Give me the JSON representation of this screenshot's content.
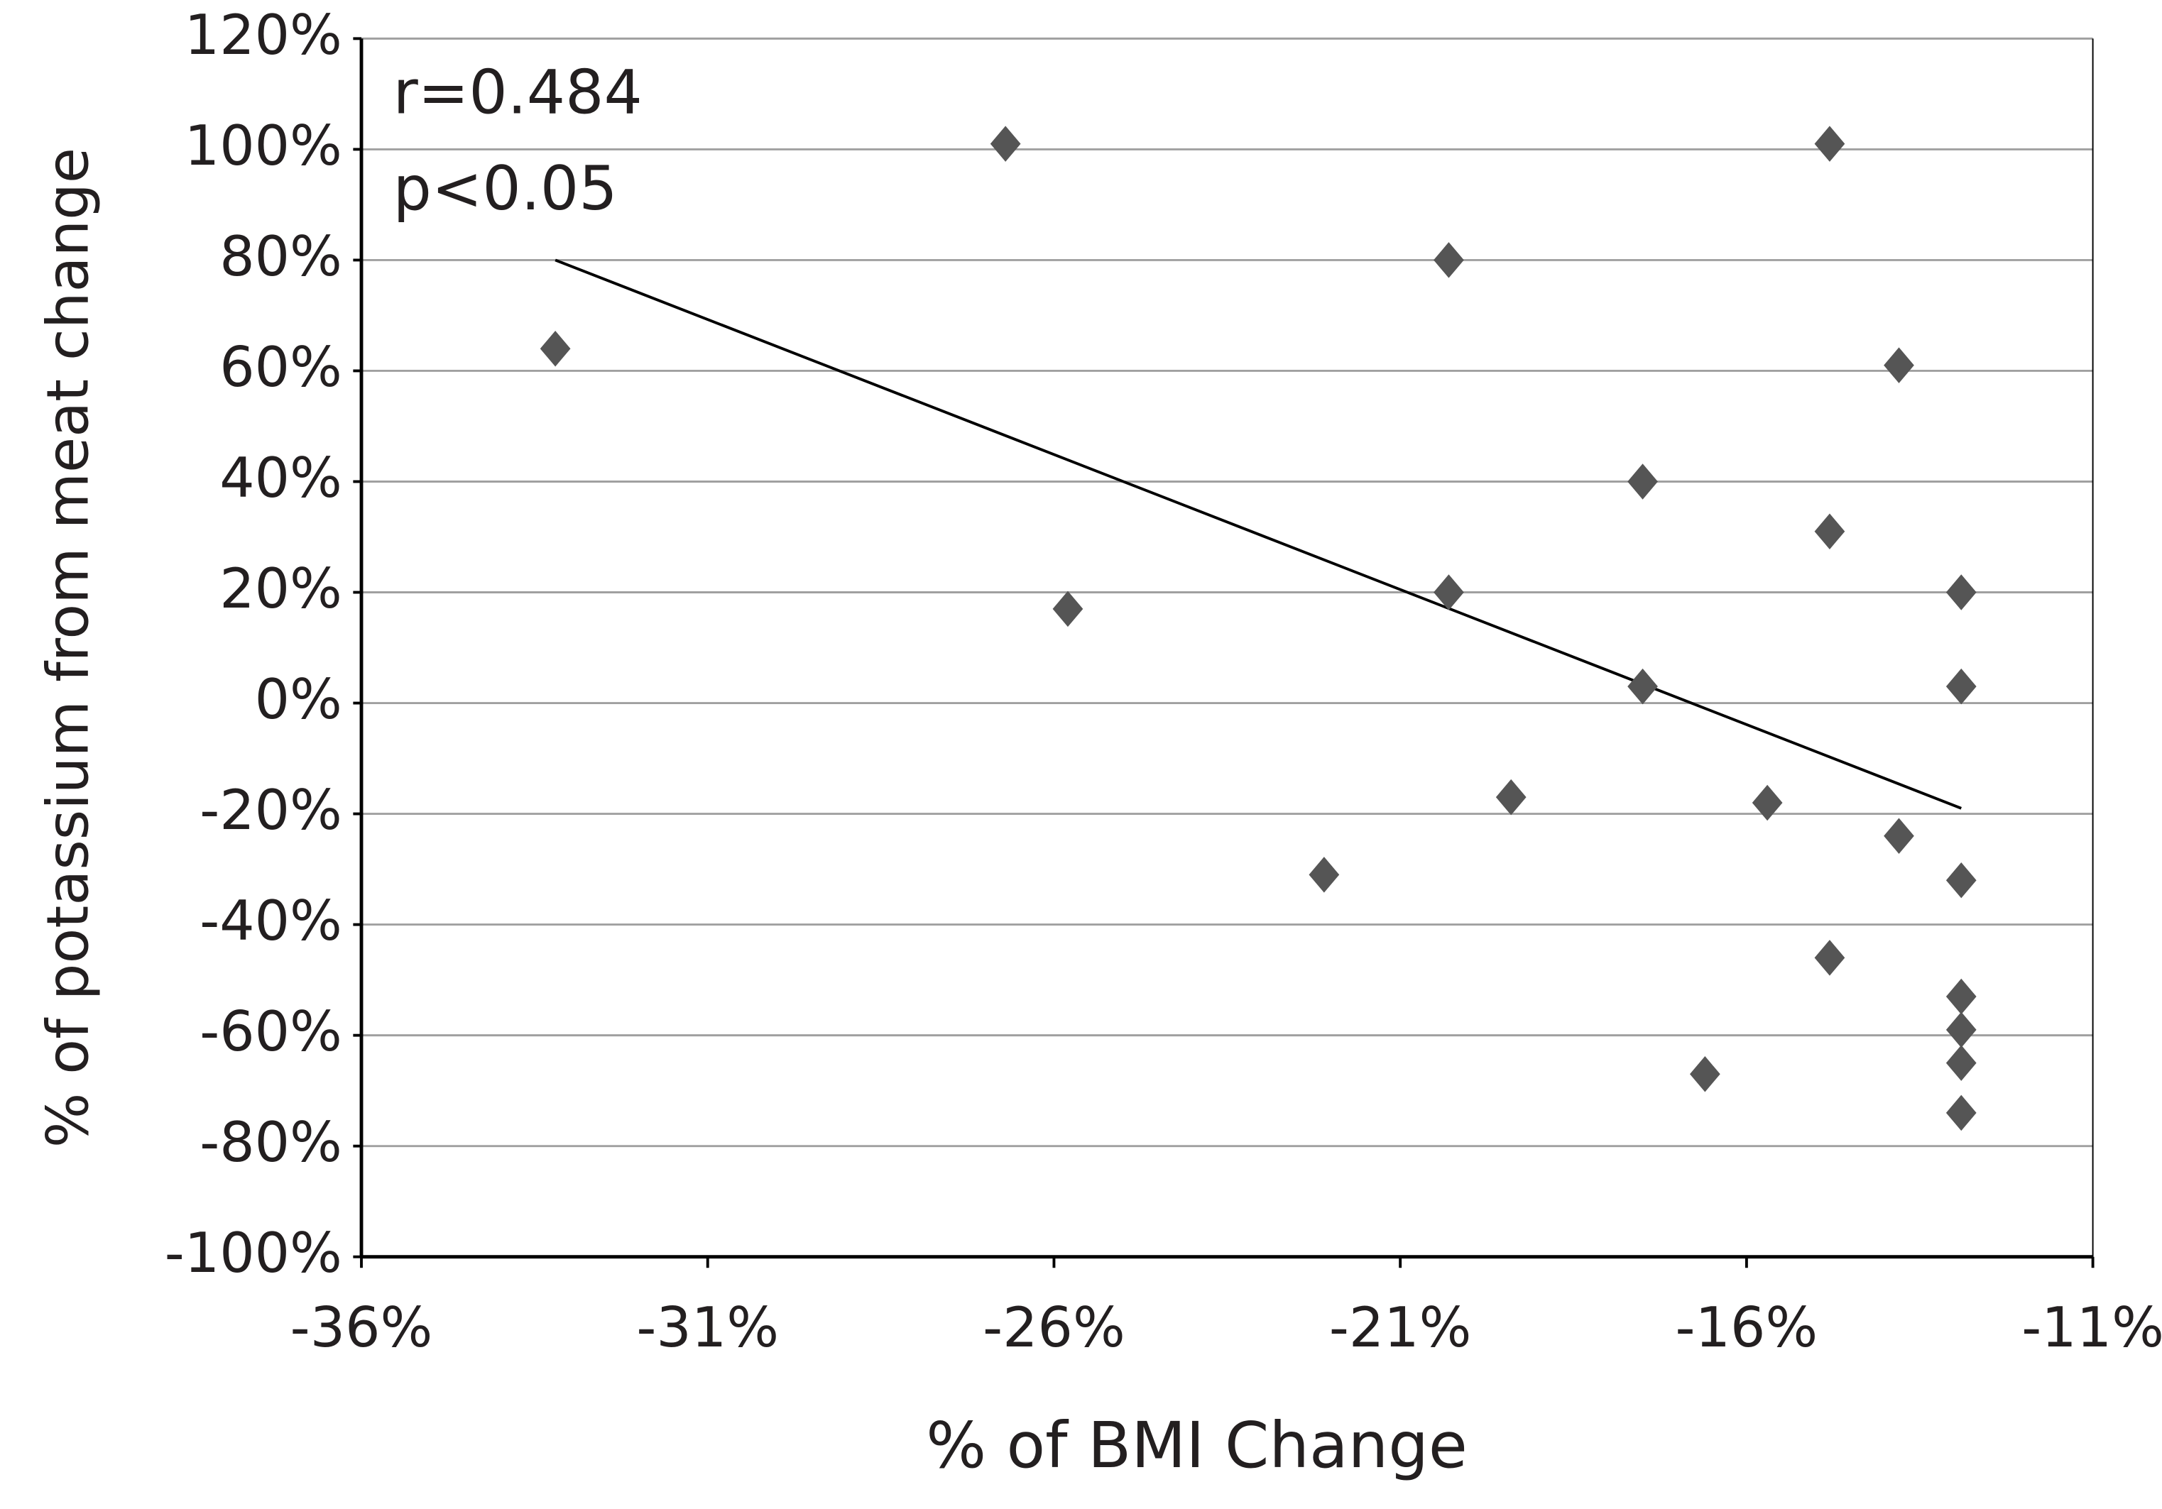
{
  "chart_data": {
    "type": "scatter",
    "xlabel": "% of BMI Change",
    "ylabel": "% of potassium from meat change",
    "annotations": [
      "r=0.484",
      "p<0.05"
    ],
    "color": "#555555",
    "grid": true,
    "xlim": [
      -36,
      -11
    ],
    "ylim": [
      -100,
      120
    ],
    "xticks": [
      {
        "value": -36,
        "label": "-36%"
      },
      {
        "value": -31,
        "label": "-31%"
      },
      {
        "value": -26,
        "label": "-26%"
      },
      {
        "value": -21,
        "label": "-21%"
      },
      {
        "value": -16,
        "label": "-16%"
      },
      {
        "value": -11,
        "label": "-11%"
      }
    ],
    "yticks": [
      {
        "value": -100,
        "label": "-100%"
      },
      {
        "value": -80,
        "label": "-80%"
      },
      {
        "value": -60,
        "label": "-60%"
      },
      {
        "value": -40,
        "label": "-40%"
      },
      {
        "value": -20,
        "label": "-20%"
      },
      {
        "value": 0,
        "label": "0%"
      },
      {
        "value": 20,
        "label": "20%"
      },
      {
        "value": 40,
        "label": "40%"
      },
      {
        "value": 60,
        "label": "60%"
      },
      {
        "value": 80,
        "label": "80%"
      },
      {
        "value": 100,
        "label": "100%"
      },
      {
        "value": 120,
        "label": "120%"
      }
    ],
    "x": [
      -33.2,
      -26.7,
      -25.8,
      -22.1,
      -20.3,
      -20.3,
      -19.4,
      -17.5,
      -17.5,
      -16.6,
      -15.7,
      -14.8,
      -14.8,
      -14.8,
      -13.8,
      -13.8,
      -12.9,
      -12.9,
      -12.9,
      -12.9,
      -12.9,
      -12.9,
      -12.9
    ],
    "values": [
      64,
      101,
      17,
      -31,
      80,
      20,
      -17,
      40,
      3,
      -67,
      -18,
      101,
      31,
      -46,
      61,
      -24,
      20,
      3,
      -32,
      -53,
      -59,
      -65,
      -74
    ],
    "trendline": {
      "x": [
        -33.2,
        -12.9
      ],
      "y": [
        80,
        -19
      ]
    }
  }
}
